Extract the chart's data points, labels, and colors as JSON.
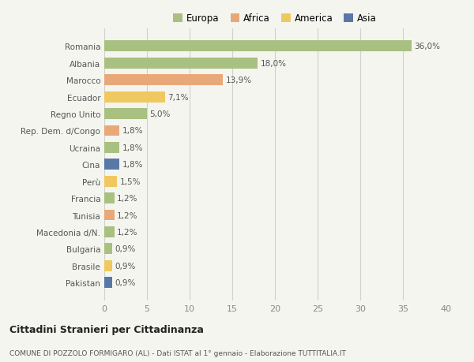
{
  "categories": [
    "Romania",
    "Albania",
    "Marocco",
    "Ecuador",
    "Regno Unito",
    "Rep. Dem. d/Congo",
    "Ucraina",
    "Cina",
    "Perù",
    "Francia",
    "Tunisia",
    "Macedonia d/N.",
    "Bulgaria",
    "Brasile",
    "Pakistan"
  ],
  "values": [
    36.0,
    18.0,
    13.9,
    7.1,
    5.0,
    1.8,
    1.8,
    1.8,
    1.5,
    1.2,
    1.2,
    1.2,
    0.9,
    0.9,
    0.9
  ],
  "labels": [
    "36,0%",
    "18,0%",
    "13,9%",
    "7,1%",
    "5,0%",
    "1,8%",
    "1,8%",
    "1,8%",
    "1,5%",
    "1,2%",
    "1,2%",
    "1,2%",
    "0,9%",
    "0,9%",
    "0,9%"
  ],
  "colors": [
    "#a8c080",
    "#a8c080",
    "#e8a878",
    "#f0c860",
    "#a8c080",
    "#e8a878",
    "#a8c080",
    "#5878a8",
    "#f0c860",
    "#a8c080",
    "#e8a878",
    "#a8c080",
    "#a8c080",
    "#f0c860",
    "#5878a8"
  ],
  "legend": {
    "Europa": "#a8c080",
    "Africa": "#e8a878",
    "America": "#f0c860",
    "Asia": "#5878a8"
  },
  "xlim": [
    0,
    40
  ],
  "xticks": [
    0,
    5,
    10,
    15,
    20,
    25,
    30,
    35,
    40
  ],
  "title": "Cittadini Stranieri per Cittadinanza",
  "subtitle": "COMUNE DI POZZOLO FORMIGARO (AL) - Dati ISTAT al 1° gennaio - Elaborazione TUTTITALIA.IT",
  "bg_color": "#f5f5f0",
  "bar_height": 0.65,
  "grid_color": "#d0d0d0"
}
